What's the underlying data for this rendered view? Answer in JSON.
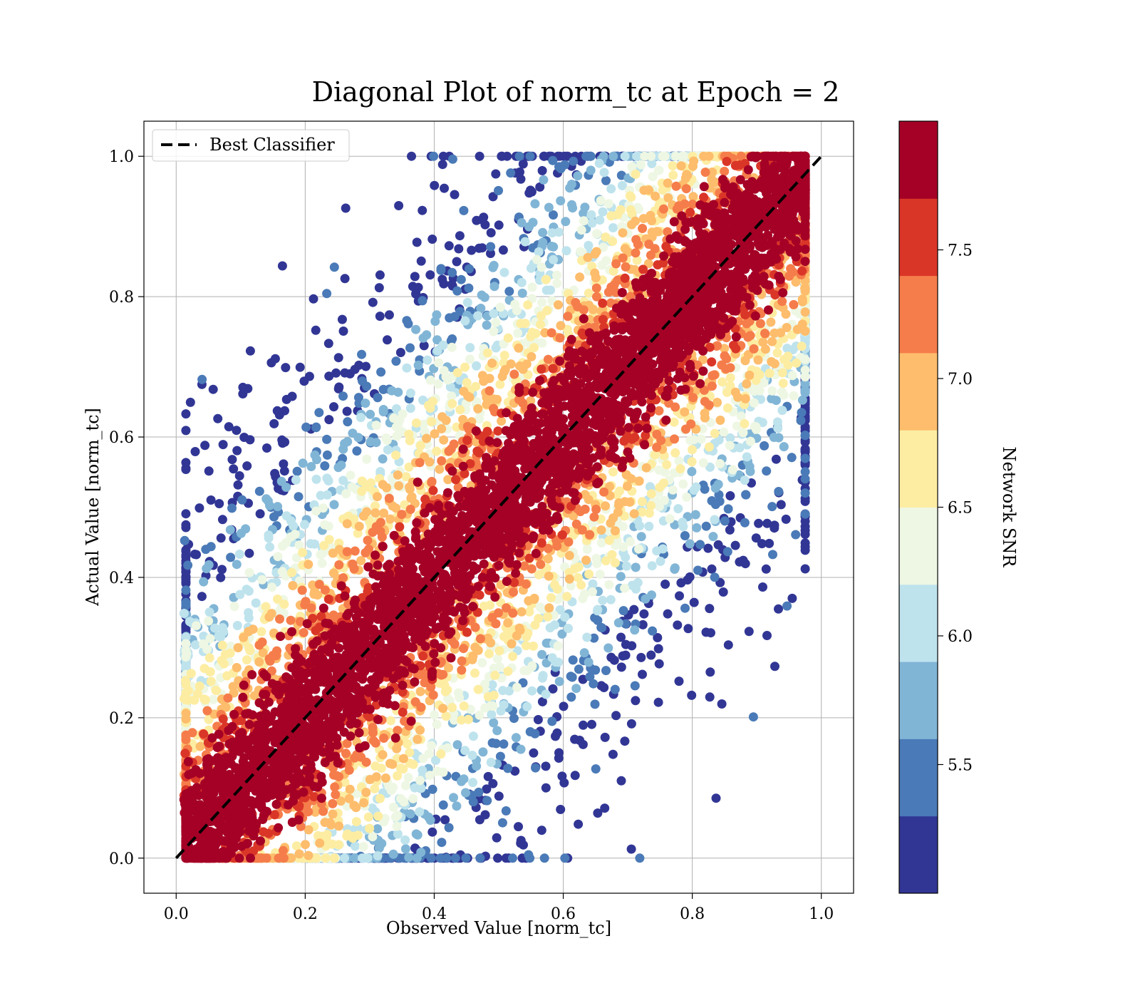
{
  "chart_data": {
    "type": "scatter",
    "title": "Diagonal Plot of norm_tc at Epoch = 2",
    "xlabel": "Observed Value [norm_tc]",
    "ylabel": "Actual Value [norm_tc]",
    "xlim": [
      -0.05,
      1.05
    ],
    "ylim": [
      -0.05,
      1.05
    ],
    "xticks": [
      "0.0",
      "0.2",
      "0.4",
      "0.6",
      "0.8",
      "1.0"
    ],
    "yticks": [
      "0.0",
      "0.2",
      "0.4",
      "0.6",
      "0.8",
      "1.0"
    ],
    "grid": true,
    "legend": {
      "placement": "top-left",
      "label": "Best Classifier"
    },
    "reference_line": {
      "name": "Best Classifier",
      "x": [
        0,
        1
      ],
      "y": [
        0,
        1
      ],
      "style": "dashed",
      "color": "#000000"
    },
    "colorbar": {
      "label": "Network SNR",
      "range": [
        5.0,
        8.0
      ],
      "ticks": [
        "5.5",
        "6.0",
        "6.5",
        "7.0",
        "7.5"
      ],
      "tick_values": [
        5.5,
        6.0,
        6.5,
        7.0,
        7.5
      ],
      "bins": [
        {
          "from": 5.0,
          "to": 5.3,
          "color": "#313695"
        },
        {
          "from": 5.3,
          "to": 5.6,
          "color": "#4a7ab7"
        },
        {
          "from": 5.6,
          "to": 5.9,
          "color": "#81b5d6"
        },
        {
          "from": 5.9,
          "to": 6.2,
          "color": "#bee3ed"
        },
        {
          "from": 6.2,
          "to": 6.5,
          "color": "#eef7e3"
        },
        {
          "from": 6.5,
          "to": 6.8,
          "color": "#fdeda3"
        },
        {
          "from": 6.8,
          "to": 7.1,
          "color": "#fdbd6c"
        },
        {
          "from": 7.1,
          "to": 7.4,
          "color": "#f57d4b"
        },
        {
          "from": 7.4,
          "to": 7.7,
          "color": "#da3628"
        },
        {
          "from": 7.7,
          "to": 8.0,
          "color": "#a50026"
        }
      ]
    },
    "scatter_model": {
      "description_points": 9000,
      "core_band_halfwidth": 0.09,
      "outer_band_halfwidth": 0.38,
      "x_clip": [
        0.0,
        0.975
      ],
      "y_clip": [
        0.0,
        1.0
      ]
    }
  }
}
